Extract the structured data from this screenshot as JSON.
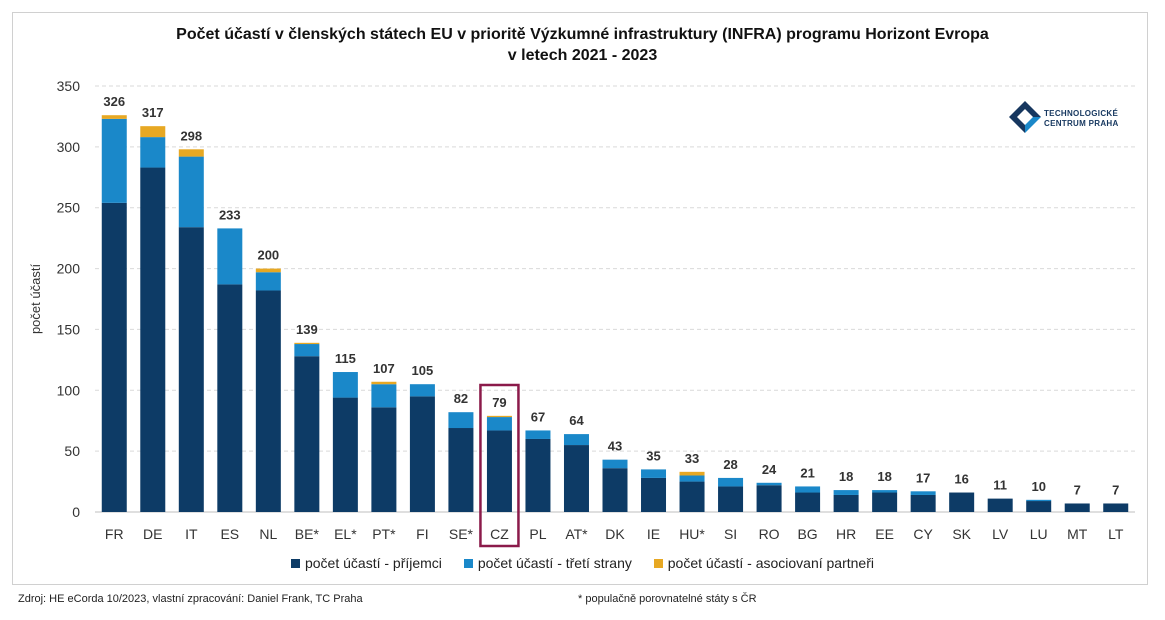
{
  "chart_data": {
    "type": "bar",
    "stacked": true,
    "title_line1": "Počet účastí  v členských státech EU v prioritě Výzkumné infrastruktury (INFRA) programu Horizont Evropa",
    "title_line2": "v letech 2021 - 2023",
    "ylabel": "počet účastí",
    "ylim": [
      0,
      350
    ],
    "yticks": [
      0,
      50,
      100,
      150,
      200,
      250,
      300,
      350
    ],
    "grid": true,
    "legend_position": "bottom",
    "highlight": "CZ",
    "categories": [
      "FR",
      "DE",
      "IT",
      "ES",
      "NL",
      "BE*",
      "EL*",
      "PT*",
      "FI",
      "SE*",
      "CZ",
      "PL",
      "AT*",
      "DK",
      "IE",
      "HU*",
      "SI",
      "RO",
      "BG",
      "HR",
      "EE",
      "CY",
      "SK",
      "LV",
      "LU",
      "MT",
      "LT"
    ],
    "totals": [
      326,
      317,
      298,
      233,
      200,
      139,
      115,
      107,
      105,
      82,
      79,
      67,
      64,
      43,
      35,
      33,
      28,
      24,
      21,
      18,
      18,
      17,
      16,
      11,
      10,
      7,
      7
    ],
    "series": [
      {
        "name": "počet účastí - příjemci",
        "color": "#0d3b66",
        "values": [
          254,
          283,
          234,
          187,
          182,
          128,
          94,
          86,
          95,
          69,
          67,
          60,
          55,
          36,
          28,
          25,
          21,
          22,
          16,
          14,
          16,
          14,
          16,
          11,
          9,
          7,
          7
        ]
      },
      {
        "name": "počet účastí - třetí strany",
        "color": "#1a88c9",
        "values": [
          69,
          25,
          58,
          46,
          15,
          10,
          21,
          19,
          10,
          13,
          11,
          7,
          9,
          7,
          7,
          5,
          7,
          2,
          5,
          4,
          2,
          3,
          0,
          0,
          1,
          0,
          0
        ]
      },
      {
        "name": "počet účastí - asociovaní partneři",
        "color": "#e7a823",
        "values": [
          3,
          9,
          6,
          0,
          3,
          1,
          0,
          2,
          0,
          0,
          1,
          0,
          0,
          0,
          0,
          3,
          0,
          0,
          0,
          0,
          0,
          0,
          0,
          0,
          0,
          0,
          0
        ]
      }
    ]
  },
  "logo": {
    "line1": "TECHNOLOGICKÉ",
    "line2": "CENTRUM PRAHA"
  },
  "footer": {
    "source": "Zdroj: HE eCorda 10/2023, vlastní zpracování: Daniel Frank, TC Praha",
    "note": "* populačně porovnatelné státy s ČR"
  }
}
